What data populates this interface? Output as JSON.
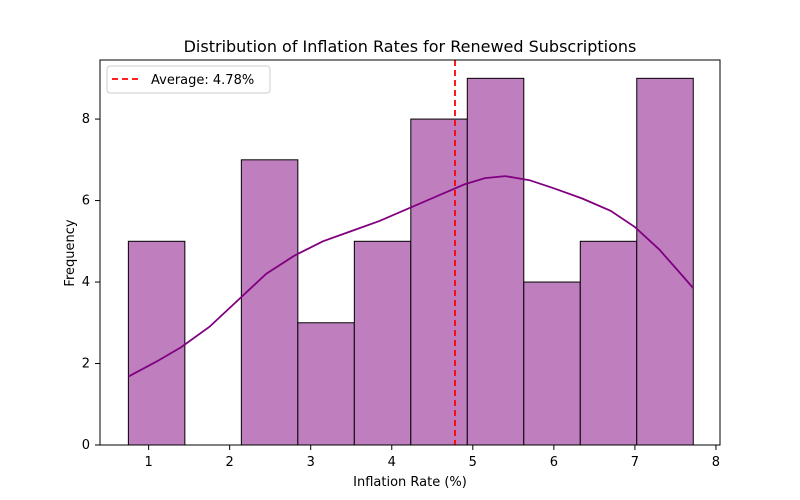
{
  "chart_data": {
    "type": "bar",
    "title": "Distribution of Inflation Rates for Renewed Subscriptions",
    "xlabel": "Inflation Rate (%)",
    "ylabel": "Frequency",
    "xlim": [
      0.4,
      8.05
    ],
    "ylim": [
      0,
      9.45
    ],
    "xticks": [
      1,
      2,
      3,
      4,
      5,
      6,
      7,
      8
    ],
    "yticks": [
      0,
      2,
      4,
      6,
      8
    ],
    "bin_edges": [
      0.75,
      1.447,
      2.144,
      2.841,
      3.538,
      4.235,
      4.932,
      5.629,
      6.326,
      7.023,
      7.72
    ],
    "values": [
      5,
      0,
      7,
      3,
      5,
      8,
      9,
      4,
      5,
      9
    ],
    "bar_color": "#bf7fbf",
    "bar_edge_color": "#000000",
    "kde": {
      "color": "#800080",
      "points": [
        [
          0.75,
          1.68
        ],
        [
          1.1,
          2.05
        ],
        [
          1.4,
          2.4
        ],
        [
          1.75,
          2.9
        ],
        [
          2.1,
          3.55
        ],
        [
          2.45,
          4.2
        ],
        [
          2.8,
          4.65
        ],
        [
          3.15,
          5.0
        ],
        [
          3.5,
          5.25
        ],
        [
          3.85,
          5.5
        ],
        [
          4.2,
          5.8
        ],
        [
          4.55,
          6.1
        ],
        [
          4.9,
          6.4
        ],
        [
          5.15,
          6.55
        ],
        [
          5.4,
          6.6
        ],
        [
          5.7,
          6.5
        ],
        [
          6.0,
          6.3
        ],
        [
          6.35,
          6.05
        ],
        [
          6.7,
          5.75
        ],
        [
          7.0,
          5.35
        ],
        [
          7.3,
          4.8
        ],
        [
          7.5,
          4.35
        ],
        [
          7.72,
          3.85
        ]
      ]
    },
    "average": {
      "value": 4.78,
      "label": "Average: 4.78%",
      "color": "#ff0000",
      "style": "dashed"
    },
    "legend": {
      "placement": "top-left"
    },
    "grid": false
  }
}
